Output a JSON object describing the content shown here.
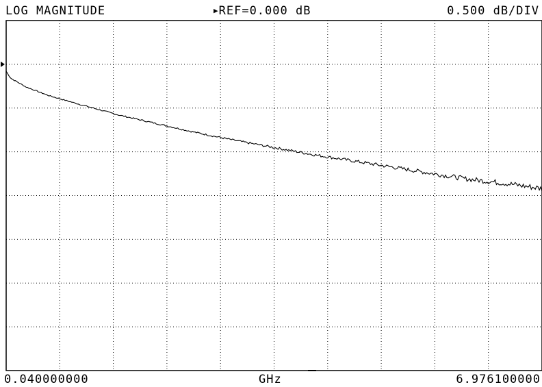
{
  "header": {
    "mode": "LOG MAGNITUDE",
    "ref": "REF=0.000 dB",
    "scale": "0.500 dB/DIV"
  },
  "footer": {
    "start": "0.040000000",
    "unit": "GHz",
    "stop": "6.976100000"
  },
  "chart_data": {
    "type": "line",
    "title": "",
    "xlabel": "GHz",
    "ylabel": "",
    "xlim": [
      0.04,
      6.9761
    ],
    "ylim": [
      -3.5,
      0.5
    ],
    "ref_value": 0.0,
    "grid": true,
    "series": [
      {
        "x": [
          0.04,
          0.1,
          0.3,
          0.6,
          1.0,
          1.5,
          2.0,
          2.5,
          3.0,
          3.5,
          4.0,
          4.5,
          5.0,
          5.5,
          6.0,
          6.5,
          6.9761
        ],
        "values": [
          -0.08,
          -0.16,
          -0.26,
          -0.36,
          -0.46,
          -0.58,
          -0.68,
          -0.78,
          -0.87,
          -0.95,
          -1.03,
          -1.1,
          -1.17,
          -1.24,
          -1.31,
          -1.36,
          -1.42
        ]
      }
    ]
  }
}
